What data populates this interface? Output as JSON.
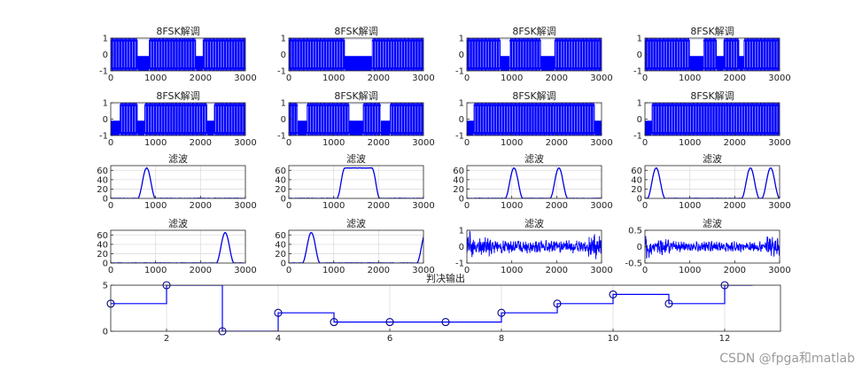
{
  "chart_data": [
    {
      "type": "line",
      "title": "8FSK解调",
      "xlim": [
        0,
        3000
      ],
      "ylim": [
        -1,
        1
      ],
      "xticks": [
        0,
        1000,
        2000,
        3000
      ],
      "yticks": [
        -1,
        0,
        1
      ],
      "kind": "fsk",
      "gaps": [
        [
          600,
          850
        ],
        [
          1900,
          2050
        ]
      ]
    },
    {
      "type": "line",
      "title": "8FSK解调",
      "xlim": [
        0,
        3000
      ],
      "ylim": [
        -1,
        1
      ],
      "xticks": [
        0,
        1000,
        2000,
        3000
      ],
      "yticks": [
        -1,
        0,
        1
      ],
      "kind": "fsk",
      "gaps": [
        [
          1250,
          1850
        ]
      ]
    },
    {
      "type": "line",
      "title": "8FSK解调",
      "xlim": [
        0,
        3000
      ],
      "ylim": [
        -1,
        1
      ],
      "xticks": [
        0,
        1000,
        2000,
        3000
      ],
      "yticks": [
        -1,
        0,
        1
      ],
      "kind": "fsk",
      "gaps": [
        [
          750,
          950
        ],
        [
          1650,
          1950
        ]
      ]
    },
    {
      "type": "line",
      "title": "8FSK解调",
      "xlim": [
        0,
        3000
      ],
      "ylim": [
        -1,
        1
      ],
      "xticks": [
        0,
        1000,
        2000,
        3000
      ],
      "yticks": [
        -1,
        0,
        1
      ],
      "kind": "fsk",
      "gaps": [
        [
          1000,
          1300
        ],
        [
          1600,
          1750
        ],
        [
          2100,
          2200
        ]
      ]
    },
    {
      "type": "line",
      "title": "8FSK解调",
      "xlim": [
        0,
        3000
      ],
      "ylim": [
        -1,
        1
      ],
      "xticks": [
        0,
        1000,
        2000,
        3000
      ],
      "yticks": [
        -1,
        0,
        1
      ],
      "kind": "fsk",
      "gaps": [
        [
          0,
          200
        ],
        [
          600,
          750
        ],
        [
          2150,
          2300
        ]
      ]
    },
    {
      "type": "line",
      "title": "8FSK解调",
      "xlim": [
        0,
        3000
      ],
      "ylim": [
        -1,
        1
      ],
      "xticks": [
        0,
        1000,
        2000,
        3000
      ],
      "yticks": [
        -1,
        0,
        1
      ],
      "kind": "fsk",
      "gaps": [
        [
          200,
          400
        ],
        [
          1350,
          1650
        ],
        [
          2050,
          2250
        ]
      ]
    },
    {
      "type": "line",
      "title": "8FSK解调",
      "xlim": [
        0,
        3000
      ],
      "ylim": [
        -1,
        1
      ],
      "xticks": [
        0,
        1000,
        2000,
        3000
      ],
      "yticks": [
        -1,
        0,
        1
      ],
      "kind": "fsk",
      "gaps": [
        [
          0,
          150
        ],
        [
          2850,
          3000
        ]
      ]
    },
    {
      "type": "line",
      "title": "8FSK解调",
      "xlim": [
        0,
        3000
      ],
      "ylim": [
        -1,
        1
      ],
      "xticks": [
        0,
        1000,
        2000,
        3000
      ],
      "yticks": [
        -1,
        0,
        1
      ],
      "kind": "fsk",
      "gaps": [
        [
          0,
          150
        ]
      ]
    },
    {
      "type": "line",
      "title": "滤波",
      "xlim": [
        0,
        3000
      ],
      "ylim": [
        0,
        70
      ],
      "xticks": [
        0,
        1000,
        2000,
        3000
      ],
      "yticks": [
        0,
        20,
        40,
        60
      ],
      "kind": "bumps",
      "bumps": [
        [
          800,
          200,
          65
        ]
      ]
    },
    {
      "type": "line",
      "title": "滤波",
      "xlim": [
        0,
        3000
      ],
      "ylim": [
        0,
        70
      ],
      "xticks": [
        0,
        1000,
        2000,
        3000
      ],
      "yticks": [
        0,
        20,
        40,
        60
      ],
      "kind": "plateau",
      "plateau": [
        1250,
        1850,
        65,
        180
      ]
    },
    {
      "type": "line",
      "title": "滤波",
      "xlim": [
        0,
        3000
      ],
      "ylim": [
        0,
        70
      ],
      "xticks": [
        0,
        1000,
        2000,
        3000
      ],
      "yticks": [
        0,
        20,
        40,
        60
      ],
      "kind": "bumps",
      "bumps": [
        [
          1050,
          200,
          65
        ],
        [
          2050,
          200,
          65
        ]
      ]
    },
    {
      "type": "line",
      "title": "滤波",
      "xlim": [
        0,
        3000
      ],
      "ylim": [
        0,
        70
      ],
      "xticks": [
        0,
        1000,
        2000,
        3000
      ],
      "yticks": [
        0,
        20,
        40,
        60
      ],
      "kind": "bumps",
      "bumps": [
        [
          250,
          200,
          65
        ],
        [
          2350,
          200,
          65
        ],
        [
          2800,
          200,
          65
        ]
      ]
    },
    {
      "type": "line",
      "title": "滤波",
      "xlim": [
        0,
        3000
      ],
      "ylim": [
        0,
        70
      ],
      "xticks": [
        0,
        1000,
        2000,
        3000
      ],
      "yticks": [
        0,
        20,
        40,
        60
      ],
      "kind": "bumps",
      "bumps": [
        [
          2550,
          200,
          65
        ]
      ]
    },
    {
      "type": "line",
      "title": "滤波",
      "xlim": [
        0,
        3000
      ],
      "ylim": [
        0,
        70
      ],
      "xticks": [
        0,
        1000,
        2000,
        3000
      ],
      "yticks": [
        0,
        20,
        40,
        60
      ],
      "kind": "bumps",
      "bumps": [
        [
          500,
          200,
          65
        ],
        [
          3050,
          200,
          65
        ]
      ]
    },
    {
      "type": "line",
      "title": "滤波",
      "xlim": [
        0,
        3000
      ],
      "ylim": [
        -1,
        1
      ],
      "xticks": [
        0,
        1000,
        2000,
        3000
      ],
      "yticks": [
        -1,
        0,
        1
      ],
      "kind": "noise",
      "amp": 0.3
    },
    {
      "type": "line",
      "title": "滤波",
      "xlim": [
        0,
        3000
      ],
      "ylim": [
        -0.5,
        0.5
      ],
      "xticks": [
        0,
        1000,
        2000,
        3000
      ],
      "yticks": [
        -0.5,
        0,
        0.5
      ],
      "kind": "noise",
      "amp": 0.12
    },
    {
      "type": "stairs",
      "title": "判决输出",
      "xlim": [
        1,
        13
      ],
      "ylim": [
        0,
        5
      ],
      "xticks": [
        2,
        4,
        6,
        8,
        10,
        12
      ],
      "yticks": [
        0,
        5
      ],
      "grid": true,
      "x": [
        1,
        2,
        3,
        4,
        5,
        6,
        7,
        8,
        9,
        10,
        11,
        12
      ],
      "values": [
        3,
        5,
        0,
        2,
        1,
        1,
        1,
        2,
        3,
        4,
        3,
        5
      ]
    }
  ],
  "watermark": "CSDN @fpga和matlab"
}
